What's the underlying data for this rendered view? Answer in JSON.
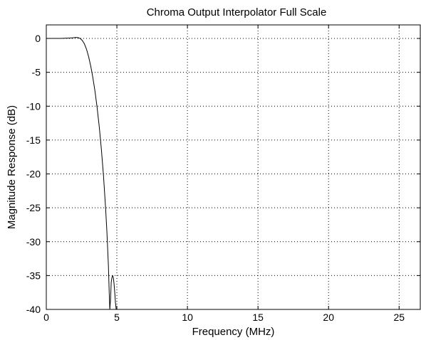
{
  "chart_data": {
    "type": "line",
    "title": "Chroma Output Interpolator Full Scale",
    "xlabel": "Frequency (MHz)",
    "ylabel": "Magnitude Response (dB)",
    "xlim": [
      0,
      26.5
    ],
    "ylim": [
      -40,
      2
    ],
    "xticks": [
      0,
      5,
      10,
      15,
      20,
      25
    ],
    "yticks": [
      0,
      -5,
      -10,
      -15,
      -20,
      -25,
      -30,
      -35,
      -40
    ],
    "xtick_labels": [
      "0",
      "5",
      "10",
      "15",
      "20",
      "25"
    ],
    "ytick_labels": [
      "0",
      "-5",
      "-10",
      "-15",
      "-20",
      "-25",
      "-30",
      "-35",
      "-40"
    ],
    "grid": true,
    "line_color": "#000000",
    "series": [
      {
        "x": [
          0,
          0.5,
          1.0,
          1.5,
          1.9,
          2.1,
          2.25,
          2.4,
          2.55,
          2.7,
          2.85,
          3.0,
          3.15,
          3.3,
          3.45,
          3.6,
          3.75,
          3.9,
          4.05,
          4.2,
          4.3,
          4.4,
          4.45,
          4.5,
          4.55,
          4.6,
          4.65,
          4.7,
          4.75,
          4.8,
          4.85,
          4.9,
          4.95,
          5.0
        ],
        "y": [
          0,
          0,
          0,
          0.05,
          0.1,
          0.15,
          0.12,
          0,
          -0.3,
          -0.8,
          -1.6,
          -2.7,
          -4.1,
          -5.8,
          -7.8,
          -10.2,
          -13.0,
          -16.3,
          -20.2,
          -25.0,
          -28.8,
          -33.5,
          -37.0,
          -40.0,
          -38.6,
          -36.0,
          -35.3,
          -35.0,
          -35.3,
          -36.2,
          -37.5,
          -39.0,
          -40.0,
          -40.0
        ]
      }
    ]
  }
}
